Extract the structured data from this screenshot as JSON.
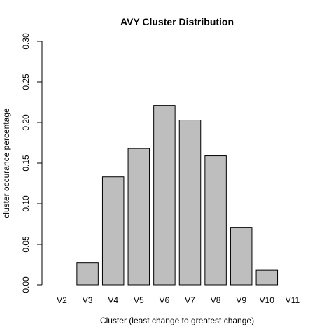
{
  "chart_data": {
    "type": "bar",
    "title": "AVY Cluster Distribution",
    "xlabel": "Cluster (least change to greatest change)",
    "ylabel": "cluster occurance percentage",
    "categories": [
      "V2",
      "V3",
      "V4",
      "V5",
      "V6",
      "V7",
      "V8",
      "V9",
      "V10",
      "V11"
    ],
    "values": [
      0.0,
      0.027,
      0.133,
      0.168,
      0.221,
      0.203,
      0.159,
      0.071,
      0.018,
      0.0
    ],
    "ylim": [
      0,
      0.3
    ],
    "yticks": [
      0.0,
      0.05,
      0.1,
      0.15,
      0.2,
      0.25,
      0.3
    ],
    "ytick_labels": [
      "0.00",
      "0.05",
      "0.10",
      "0.15",
      "0.20",
      "0.25",
      "0.30"
    ],
    "grid": false,
    "legend": "none",
    "bar_color": "#bebebe",
    "edge_color": "#000000"
  }
}
